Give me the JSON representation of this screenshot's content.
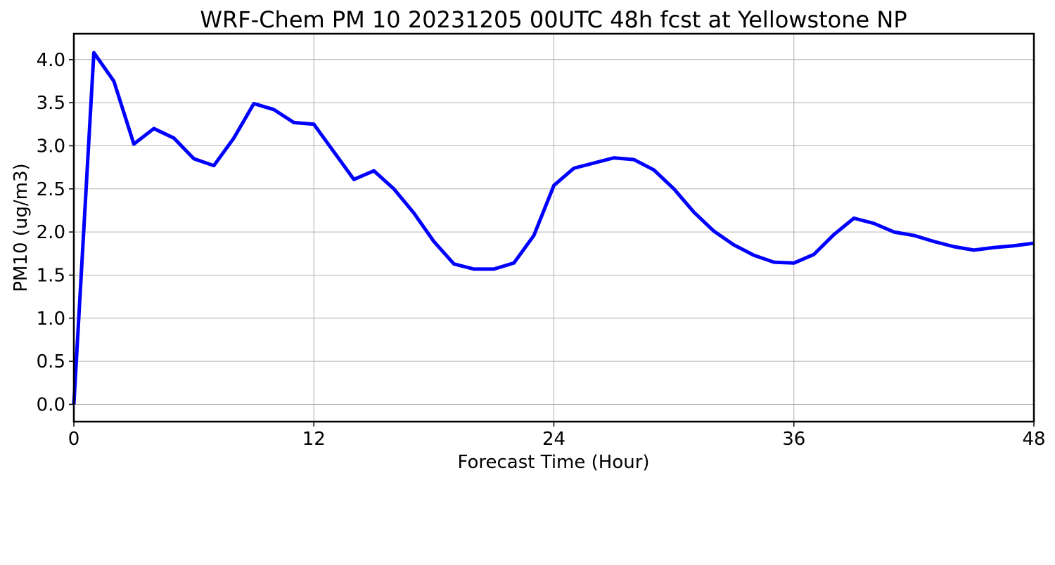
{
  "chart_data": {
    "type": "line",
    "title": "WRF-Chem PM 10  20231205 00UTC 48h fcst at Yellowstone NP",
    "xlabel": "Forecast Time (Hour)",
    "ylabel": "PM10  (ug/m3)",
    "xlim": [
      0,
      48
    ],
    "ylim": [
      -0.2,
      4.3
    ],
    "xticks": [
      0,
      12,
      24,
      36,
      48
    ],
    "xtick_labels": [
      "0",
      "12",
      "24",
      "36",
      "48"
    ],
    "yticks": [
      0.0,
      0.5,
      1.0,
      1.5,
      2.0,
      2.5,
      3.0,
      3.5,
      4.0
    ],
    "ytick_labels": [
      "0.0",
      "0.5",
      "1.0",
      "1.5",
      "2.0",
      "2.5",
      "3.0",
      "3.5",
      "4.0"
    ],
    "grid": true,
    "legend": "none",
    "line_color": "#0000ff",
    "grid_color": "#b0b0b0",
    "series": [
      {
        "x": [
          0,
          1,
          2,
          3,
          4,
          5,
          6,
          7,
          8,
          9,
          10,
          11,
          12,
          13,
          14,
          15,
          16,
          17,
          18,
          19,
          20,
          21,
          22,
          23,
          24,
          25,
          26,
          27,
          28,
          29,
          30,
          31,
          32,
          33,
          34,
          35,
          36,
          37,
          38,
          39,
          40,
          41,
          42,
          43,
          44,
          45,
          46,
          47,
          48
        ],
        "values": [
          0.0,
          4.08,
          3.75,
          3.02,
          3.2,
          3.09,
          2.85,
          2.77,
          3.09,
          3.49,
          3.42,
          3.27,
          3.25,
          2.93,
          2.61,
          2.71,
          2.5,
          2.22,
          1.89,
          1.63,
          1.57,
          1.57,
          1.64,
          1.96,
          2.54,
          2.74,
          2.8,
          2.86,
          2.84,
          2.72,
          2.5,
          2.23,
          2.01,
          1.85,
          1.73,
          1.65,
          1.64,
          1.74,
          1.97,
          2.16,
          2.1,
          2.0,
          1.96,
          1.89,
          1.83,
          1.79,
          1.82,
          1.84,
          1.87
        ]
      }
    ]
  }
}
